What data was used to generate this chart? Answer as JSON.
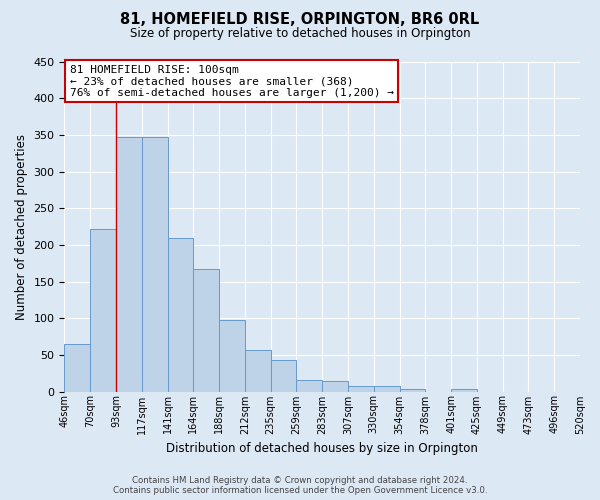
{
  "title": "81, HOMEFIELD RISE, ORPINGTON, BR6 0RL",
  "subtitle": "Size of property relative to detached houses in Orpington",
  "xlabel": "Distribution of detached houses by size in Orpington",
  "ylabel": "Number of detached properties",
  "bar_values": [
    65,
    222,
    347,
    347,
    209,
    167,
    98,
    57,
    43,
    16,
    15,
    7,
    7,
    4,
    0,
    3
  ],
  "bin_labels": [
    "46sqm",
    "70sqm",
    "93sqm",
    "117sqm",
    "141sqm",
    "164sqm",
    "188sqm",
    "212sqm",
    "235sqm",
    "259sqm",
    "283sqm",
    "307sqm",
    "330sqm",
    "354sqm",
    "378sqm",
    "401sqm",
    "425sqm",
    "449sqm",
    "473sqm",
    "496sqm",
    "520sqm"
  ],
  "bar_color": "#bed3e8",
  "bar_edge_color": "#6699cc",
  "vline_x_label_index": 2,
  "vline_color": "#cc0000",
  "annotation_title": "81 HOMEFIELD RISE: 100sqm",
  "annotation_line2": "← 23% of detached houses are smaller (368)",
  "annotation_line3": "76% of semi-detached houses are larger (1,200) →",
  "annotation_box_color": "#cc0000",
  "ylim": [
    0,
    450
  ],
  "yticks": [
    0,
    50,
    100,
    150,
    200,
    250,
    300,
    350,
    400,
    450
  ],
  "footer_line1": "Contains HM Land Registry data © Crown copyright and database right 2024.",
  "footer_line2": "Contains public sector information licensed under the Open Government Licence v3.0.",
  "bg_color": "#dde8f5",
  "plot_bg_color": "#dde8f5",
  "grid_color": "#ffffff"
}
